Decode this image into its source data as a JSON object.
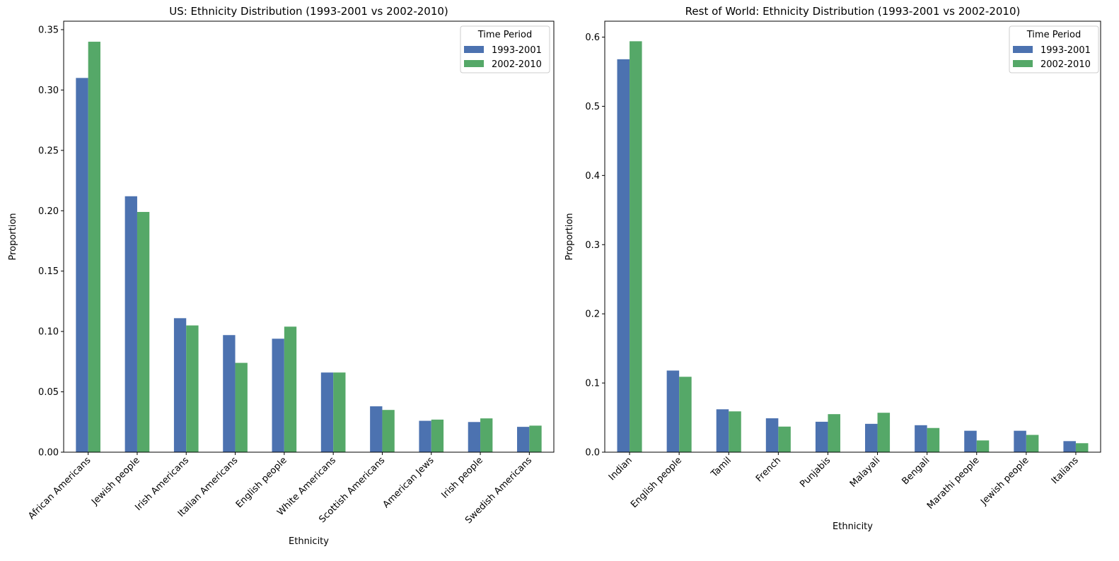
{
  "chart_data": [
    {
      "type": "bar",
      "title": "US: Ethnicity Distribution (1993-2001 vs 2002-2010)",
      "xlabel": "Ethnicity",
      "ylabel": "Proportion",
      "ylim": [
        0,
        0.357
      ],
      "yticks": [
        0.0,
        0.05,
        0.1,
        0.15,
        0.2,
        0.25,
        0.3,
        0.35
      ],
      "ytick_labels": [
        "0.00",
        "0.05",
        "0.10",
        "0.15",
        "0.20",
        "0.25",
        "0.30",
        "0.35"
      ],
      "categories": [
        "African Americans",
        "Jewish people",
        "Irish Americans",
        "Italian Americans",
        "English people",
        "White Americans",
        "Scottish Americans",
        "American Jews",
        "Irish people",
        "Swedish Americans"
      ],
      "series": [
        {
          "name": "1993-2001",
          "color": "#4c72b0",
          "values": [
            0.31,
            0.212,
            0.111,
            0.097,
            0.094,
            0.066,
            0.038,
            0.026,
            0.025,
            0.021
          ]
        },
        {
          "name": "2002-2010",
          "color": "#55a868",
          "values": [
            0.34,
            0.199,
            0.105,
            0.074,
            0.104,
            0.066,
            0.035,
            0.027,
            0.028,
            0.022
          ]
        }
      ],
      "legend": {
        "title": "Time Period",
        "position": "top-right"
      },
      "grid": false
    },
    {
      "type": "bar",
      "title": "Rest of World: Ethnicity Distribution (1993-2001 vs 2002-2010)",
      "xlabel": "Ethnicity",
      "ylabel": "Proportion",
      "ylim": [
        0,
        0.623
      ],
      "yticks": [
        0.0,
        0.1,
        0.2,
        0.3,
        0.4,
        0.5,
        0.6
      ],
      "ytick_labels": [
        "0.0",
        "0.1",
        "0.2",
        "0.3",
        "0.4",
        "0.5",
        "0.6"
      ],
      "categories": [
        "Indian",
        "English people",
        "Tamil",
        "French",
        "Punjabis",
        "Malayali",
        "Bengali",
        "Marathi people",
        "Jewish people",
        "Italians"
      ],
      "series": [
        {
          "name": "1993-2001",
          "color": "#4c72b0",
          "values": [
            0.568,
            0.118,
            0.062,
            0.049,
            0.044,
            0.041,
            0.039,
            0.031,
            0.031,
            0.016
          ]
        },
        {
          "name": "2002-2010",
          "color": "#55a868",
          "values": [
            0.594,
            0.109,
            0.059,
            0.037,
            0.055,
            0.057,
            0.035,
            0.017,
            0.025,
            0.013
          ]
        }
      ],
      "legend": {
        "title": "Time Period",
        "position": "top-right"
      },
      "grid": false
    }
  ]
}
